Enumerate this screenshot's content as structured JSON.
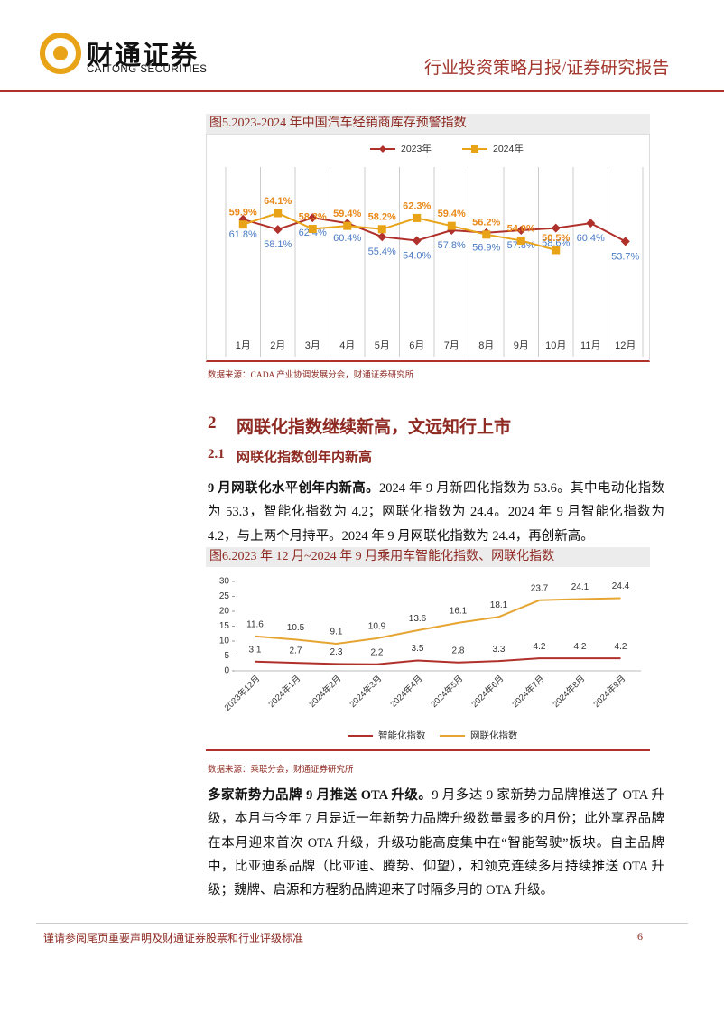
{
  "header": {
    "logo_name": "财通证券",
    "logo_name_en": "CAITONG SECURITIES",
    "report_type": "行业投资策略月报/证券研究报告"
  },
  "chart_data": [
    {
      "type": "line",
      "title": "图5.2023-2024 年中国汽车经销商库存预警指数",
      "source": "数据来源：CADA 产业协调发展分会，财通证券研究所",
      "categories": [
        "1月",
        "2月",
        "3月",
        "4月",
        "5月",
        "6月",
        "7月",
        "8月",
        "9月",
        "10月",
        "11月",
        "12月"
      ],
      "series": [
        {
          "name": "2023年",
          "color": "#b0302b",
          "marker": "diamond",
          "label_color": "#4a7cc4",
          "label_side": "below",
          "values": [
            61.8,
            58.1,
            62.4,
            60.4,
            55.4,
            54.0,
            57.8,
            56.9,
            57.8,
            58.6,
            60.4,
            53.7
          ],
          "value_labels": [
            "61.8%",
            "58.1%",
            "62.4%",
            "60.4%",
            "55.4%",
            "54.0%",
            "57.8%",
            "56.9%",
            "57.8%",
            "58.6%",
            "60.4%",
            "53.7%"
          ]
        },
        {
          "name": "2024年",
          "color": "#e8a317",
          "marker": "square",
          "label_color": "#e8891a",
          "label_side": "above",
          "values": [
            59.9,
            64.1,
            58.3,
            59.4,
            58.2,
            62.3,
            59.4,
            56.2,
            54.0,
            50.5,
            null,
            null
          ],
          "value_labels": [
            "59.9%",
            "64.1%",
            "58.3%",
            "59.4%",
            "58.2%",
            "62.3%",
            "59.4%",
            "56.2%",
            "54.0%",
            "50.5%",
            null,
            null
          ]
        }
      ],
      "grid": true,
      "legend": "top"
    },
    {
      "type": "line",
      "title": "图6.2023 年 12 月~2024 年 9 月乘用车智能化指数、网联化指数",
      "source": "数据来源：乘联分会，财通证券研究所",
      "categories": [
        "2023年12月",
        "2024年1月",
        "2024年2月",
        "2024年3月",
        "2024年4月",
        "2024年5月",
        "2024年6月",
        "2024年7月",
        "2024年8月",
        "2024年9月"
      ],
      "series": [
        {
          "name": "智能化指数",
          "color": "#b0302b",
          "label_color": "#333333",
          "label_side": "above",
          "values": [
            3.1,
            2.7,
            2.3,
            2.2,
            3.5,
            2.8,
            3.3,
            4.2,
            4.2,
            4.2
          ]
        },
        {
          "name": "网联化指数",
          "color": "#e6a532",
          "label_color": "#333333",
          "label_side": "above",
          "values": [
            11.6,
            10.5,
            9.1,
            10.9,
            13.6,
            16.1,
            18.1,
            23.7,
            24.1,
            24.4
          ]
        }
      ],
      "ylim": [
        0,
        30
      ],
      "yticks": [
        0,
        5,
        10,
        15,
        20,
        25,
        30
      ],
      "grid": false,
      "legend": "bottom"
    }
  ],
  "section": {
    "number": "2",
    "title": "网联化指数继续新高，文远知行上市"
  },
  "subsection": {
    "number": "2.1",
    "title": "网联化指数创年内新高"
  },
  "paragraphs": [
    {
      "lead": "9 月网联化水平创年内新高。",
      "text": "2024 年 9 月新四化指数为 53.6。其中电动化指数为 53.3，智能化指数为 4.2；网联化指数为 24.4。2024 年 9 月智能化指数为 4.2，与上两个月持平。2024 年 9 月网联化指数为 24.4，再创新高。"
    },
    {
      "lead": "多家新势力品牌 9 月推送 OTA 升级。",
      "text": "9 月多达 9 家新势力品牌推送了 OTA 升级，本月与今年 7 月是近一年新势力品牌升级数量最多的月份；此外享界品牌在本月迎来首次 OTA 升级，升级功能高度集中在“智能驾驶”板块。自主品牌中，比亚迪系品牌（比亚迪、腾势、仰望），和领克连续多月持续推送 OTA 升级；魏牌、启源和方程豹品牌迎来了时隔多月的 OTA 升级。"
    }
  ],
  "footer": {
    "disclaimer": "谨请参阅尾页重要声明及财通证券股票和行业评级标准",
    "page": 6
  }
}
